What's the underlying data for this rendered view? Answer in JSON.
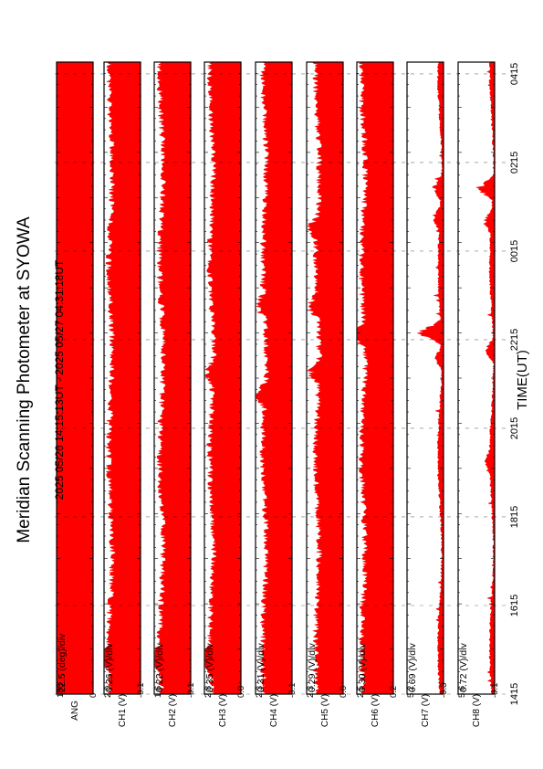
{
  "title": "Meridian Scanning Photometer at SYOWA",
  "time_range": "2025 05/26 14:15:13UT - 2025 05/27 04:31:18UT",
  "xlabel": "TIME(UT)",
  "colors": {
    "trace": "#ff0000",
    "axes": "#000000",
    "background": "#ffffff"
  },
  "chart_data": {
    "type": "area",
    "orientation": "rotated-90-ccw",
    "x_ticks": [
      "1415",
      "1615",
      "1815",
      "2015",
      "2215",
      "0015",
      "0215",
      "0415"
    ],
    "xlim": [
      "1415",
      "0431"
    ],
    "panels": [
      {
        "ylabel": "ANG",
        "scale": "22.5 (deg)/div",
        "yticks": [
          "180",
          "0"
        ],
        "fill": "full"
      },
      {
        "ylabel": "CH1 (V)",
        "scale": "0.26 (V)/div",
        "yticks": [
          "2.0",
          "-0.1"
        ],
        "fill": "high",
        "level": 0.82,
        "events": [
          {
            "x": "1505",
            "amp": 0.5
          }
        ]
      },
      {
        "ylabel": "CH2 (V)",
        "scale": "0.22 (V)/div",
        "yticks": [
          "1.6",
          "-0.1"
        ],
        "fill": "high",
        "level": 0.8,
        "events": [
          {
            "x": "1505",
            "amp": 0.6
          }
        ]
      },
      {
        "ylabel": "CH3 (V)",
        "scale": "0.35 (V)/div",
        "yticks": [
          "2.8",
          "0.0"
        ],
        "fill": "high",
        "level": 0.8,
        "events": [
          {
            "x": "1505",
            "amp": 0.5
          },
          {
            "x": "2130",
            "amp": 0.2
          }
        ]
      },
      {
        "ylabel": "CH4 (V)",
        "scale": "0.31 (V)/div",
        "yticks": [
          "2.3",
          "-0.1"
        ],
        "fill": "high",
        "level": 0.75,
        "events": [
          {
            "x": "2100",
            "amp": 0.35
          },
          {
            "x": "2300",
            "amp": 0.25
          }
        ]
      },
      {
        "ylabel": "CH5 (V)",
        "scale": "0.29 (V)/div",
        "yticks": [
          "2.3",
          "0.0"
        ],
        "fill": "high",
        "level": 0.7,
        "events": [
          {
            "x": "2130",
            "amp": 0.35
          },
          {
            "x": "2300",
            "amp": 0.3
          },
          {
            "x": "0045",
            "amp": 0.25
          }
        ]
      },
      {
        "ylabel": "CH6 (V)",
        "scale": "0.30 (V)/div",
        "yticks": [
          "2.5",
          "0.2"
        ],
        "fill": "high",
        "level": 0.82,
        "events": [
          {
            "x": "2220",
            "amp": 0.5
          }
        ]
      },
      {
        "ylabel": "CH7 (V)",
        "scale": "0.69 (V)/div",
        "yticks": [
          "5.2",
          "-0.3"
        ],
        "fill": "low",
        "level": 0.1,
        "events": [
          {
            "x": "2225",
            "amp": 0.6
          },
          {
            "x": "2150",
            "amp": 0.2
          },
          {
            "x": "0100",
            "amp": 0.2
          },
          {
            "x": "0140",
            "amp": 0.25
          }
        ]
      },
      {
        "ylabel": "CH8 (V)",
        "scale": "0.72 (V)/div",
        "yticks": [
          "5.6",
          "-0.1"
        ],
        "fill": "low",
        "level": 0.08,
        "events": [
          {
            "x": "0140",
            "amp": 0.45
          },
          {
            "x": "2200",
            "amp": 0.25
          },
          {
            "x": "0055",
            "amp": 0.2
          },
          {
            "x": "1930",
            "amp": 0.15
          }
        ]
      }
    ]
  }
}
